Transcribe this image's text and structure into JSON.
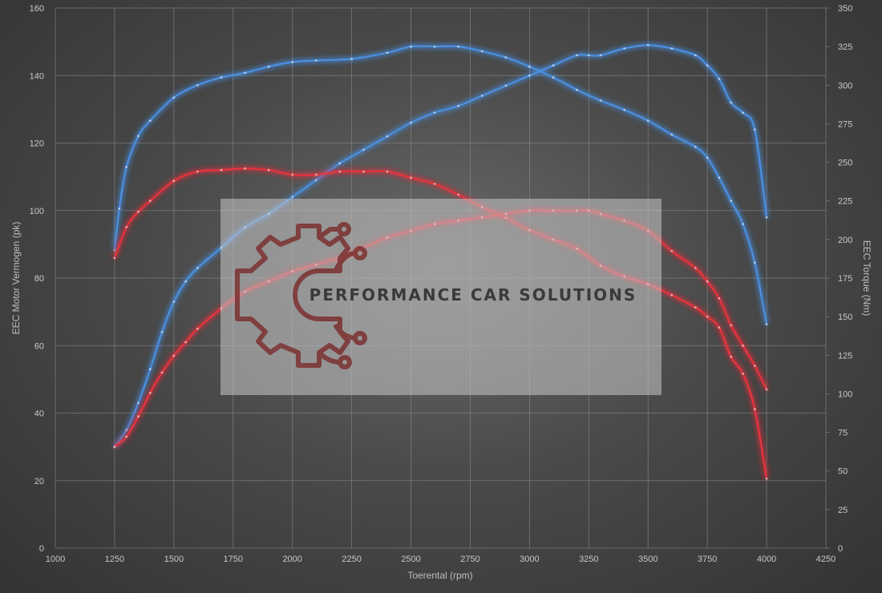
{
  "chart_data": {
    "type": "line",
    "xlabel": "Toerental (rpm)",
    "ylabel_left": "EEC Motor Vermogen (pk)",
    "ylabel_right": "EEC Torque (Nm)",
    "xlim": [
      1000,
      4250
    ],
    "xticks": [
      1000,
      1250,
      1500,
      1750,
      2000,
      2250,
      2500,
      2750,
      3000,
      3250,
      3500,
      3750,
      4000,
      4250
    ],
    "ylim_left": [
      0,
      160
    ],
    "yticks_left": [
      0,
      20,
      40,
      60,
      80,
      100,
      120,
      140,
      160
    ],
    "ylim_right": [
      0,
      350
    ],
    "yticks_right": [
      0,
      25,
      50,
      75,
      100,
      125,
      150,
      175,
      200,
      225,
      250,
      275,
      300,
      325,
      350
    ],
    "grid": true,
    "series": [
      {
        "axis": "right",
        "color": "#4a90e2",
        "x": [
          1250,
          1270,
          1300,
          1350,
          1400,
          1500,
          1600,
          1700,
          1800,
          1900,
          2000,
          2100,
          2250,
          2400,
          2500,
          2600,
          2700,
          2800,
          2900,
          3000,
          3100,
          3200,
          3300,
          3400,
          3500,
          3600,
          3700,
          3750,
          3800,
          3850,
          3900,
          3950,
          4000
        ],
        "y": [
          193,
          220,
          247,
          267,
          277,
          292,
          300,
          305,
          308,
          312,
          315,
          316,
          317,
          321,
          325,
          325,
          325,
          322,
          318,
          312,
          305,
          297,
          290,
          284,
          277,
          268,
          260,
          253,
          240,
          225,
          210,
          185,
          145
        ]
      },
      {
        "axis": "left",
        "color": "#4a90e2",
        "x": [
          1250,
          1300,
          1350,
          1400,
          1450,
          1500,
          1550,
          1600,
          1700,
          1800,
          1900,
          2000,
          2100,
          2200,
          2300,
          2400,
          2500,
          2600,
          2700,
          2800,
          2900,
          3000,
          3100,
          3200,
          3250,
          3300,
          3400,
          3500,
          3600,
          3700,
          3750,
          3800,
          3850,
          3900,
          3950,
          4000
        ],
        "y": [
          30,
          35,
          43,
          53,
          64,
          73,
          79,
          83,
          89,
          95,
          99,
          104,
          109,
          114,
          118,
          122,
          126,
          129,
          131,
          134,
          137,
          140,
          143,
          146,
          146,
          146,
          148,
          149,
          148,
          146,
          143,
          139,
          132,
          129,
          124,
          98
        ]
      },
      {
        "axis": "right",
        "color": "#e8323c",
        "x": [
          1250,
          1300,
          1350,
          1400,
          1500,
          1600,
          1700,
          1800,
          1900,
          2000,
          2100,
          2200,
          2300,
          2400,
          2500,
          2600,
          2700,
          2800,
          2900,
          3000,
          3100,
          3200,
          3300,
          3400,
          3500,
          3600,
          3700,
          3750,
          3800,
          3850,
          3900,
          3950,
          4000
        ],
        "y": [
          188,
          208,
          218,
          225,
          238,
          244,
          245,
          246,
          245,
          242,
          242,
          244,
          244,
          244,
          240,
          236,
          229,
          221,
          214,
          206,
          200,
          194,
          183,
          176,
          171,
          164,
          156,
          150,
          143,
          124,
          113,
          90,
          45
        ]
      },
      {
        "axis": "left",
        "color": "#e8323c",
        "x": [
          1250,
          1300,
          1350,
          1400,
          1450,
          1500,
          1550,
          1600,
          1700,
          1800,
          1900,
          2000,
          2100,
          2200,
          2300,
          2400,
          2500,
          2600,
          2700,
          2800,
          2900,
          3000,
          3100,
          3200,
          3250,
          3300,
          3400,
          3500,
          3600,
          3700,
          3750,
          3800,
          3850,
          3900,
          3950,
          4000
        ],
        "y": [
          30,
          33,
          39,
          46,
          52,
          57,
          61,
          65,
          71,
          76,
          79,
          82,
          84,
          86,
          89,
          92,
          94,
          96,
          97,
          98,
          99,
          100,
          100,
          100,
          100,
          99,
          97,
          94,
          88,
          83,
          79,
          74,
          66,
          60,
          54,
          47
        ]
      }
    ]
  },
  "watermark": {
    "text": "PERFORMANCE CAR SOLUTIONS",
    "logo_color": "#7a2a2a"
  }
}
